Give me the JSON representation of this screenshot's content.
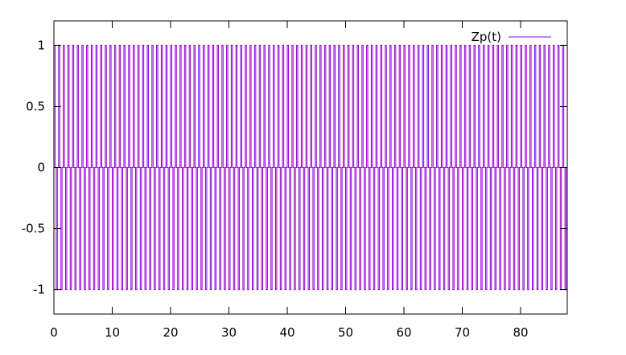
{
  "chart_data": {
    "type": "line",
    "title": "",
    "xlabel": "",
    "ylabel": "",
    "xlim": [
      0,
      88
    ],
    "ylim": [
      -1.2,
      1.2
    ],
    "x_ticks": [
      0,
      10,
      20,
      30,
      40,
      50,
      60,
      70,
      80
    ],
    "x_tick_labels": [
      "0",
      "10",
      "20",
      "30",
      "40",
      "50",
      "60",
      "70",
      "80"
    ],
    "y_ticks": [
      1,
      0.5,
      0,
      -0.5,
      -1
    ],
    "y_tick_labels": [
      "1",
      "0.5",
      "0",
      "-0.5",
      "-1"
    ],
    "grid": false,
    "legend_position": "top-right",
    "series": [
      {
        "name": "Zp(t)",
        "color": "#9400d3",
        "x_range": [
          0,
          88
        ],
        "samples": "±1 pulse train",
        "cycle_length": 0.8,
        "max": 1,
        "min": -1
      }
    ]
  }
}
